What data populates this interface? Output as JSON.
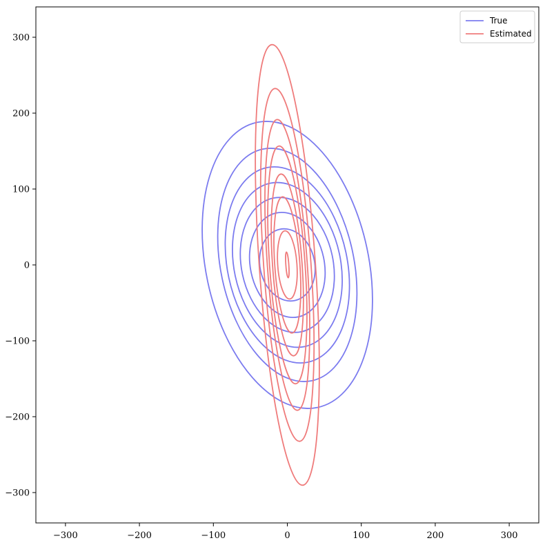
{
  "chart_data": {
    "type": "line",
    "title": "",
    "xlabel": "",
    "ylabel": "",
    "xlim": [
      -340,
      340
    ],
    "ylim": [
      -340,
      340
    ],
    "xticks": [
      -300,
      -200,
      -100,
      0,
      100,
      200,
      300
    ],
    "yticks": [
      -300,
      -200,
      -100,
      0,
      100,
      200,
      300
    ],
    "xtick_labels": [
      "−300",
      "−200",
      "−100",
      "0",
      "100",
      "200",
      "300"
    ],
    "ytick_labels": [
      "−300",
      "−200",
      "−100",
      "0",
      "100",
      "200",
      "300"
    ],
    "grid": false,
    "legend_position": "top-right",
    "series": [
      {
        "name": "True",
        "color": "#7b7bef",
        "kind": "ellipse-contours",
        "center": [
          0,
          0
        ],
        "contours": [
          {
            "x_extent": [
              -37,
              37
            ],
            "y_extent": [
              -48,
              48
            ]
          },
          {
            "x_extent": [
              -50,
              50
            ],
            "y_extent": [
              -70,
              70
            ]
          },
          {
            "x_extent": [
              -62,
              62
            ],
            "y_extent": [
              -90,
              90
            ]
          },
          {
            "x_extent": [
              -72,
              72
            ],
            "y_extent": [
              -110,
              110
            ]
          },
          {
            "x_extent": [
              -81,
              81
            ],
            "y_extent": [
              -131,
              131
            ]
          },
          {
            "x_extent": [
              -90,
              90
            ],
            "y_extent": [
              -156,
              156
            ]
          },
          {
            "x_extent": [
              -110,
              110
            ],
            "y_extent": [
              -192,
              192
            ]
          }
        ]
      },
      {
        "name": "Estimated",
        "color": "#ef7b7b",
        "kind": "ellipse-contours",
        "center": [
          0,
          0
        ],
        "contours": [
          {
            "x_extent": [
              -2,
              2
            ],
            "y_extent": [
              -17,
              17
            ]
          },
          {
            "x_extent": [
              -13,
              13
            ],
            "y_extent": [
              -45,
              45
            ]
          },
          {
            "x_extent": [
              -17,
              17
            ],
            "y_extent": [
              -90,
              90
            ]
          },
          {
            "x_extent": [
              -20,
              20
            ],
            "y_extent": [
              -120,
              120
            ]
          },
          {
            "x_extent": [
              -24,
              24
            ],
            "y_extent": [
              -157,
              157
            ]
          },
          {
            "x_extent": [
              -27,
              27
            ],
            "y_extent": [
              -192,
              192
            ]
          },
          {
            "x_extent": [
              -32,
              32
            ],
            "y_extent": [
              -233,
              233
            ]
          },
          {
            "x_extent": [
              -38,
              38
            ],
            "y_extent": [
              -291,
              291
            ]
          }
        ]
      }
    ]
  }
}
